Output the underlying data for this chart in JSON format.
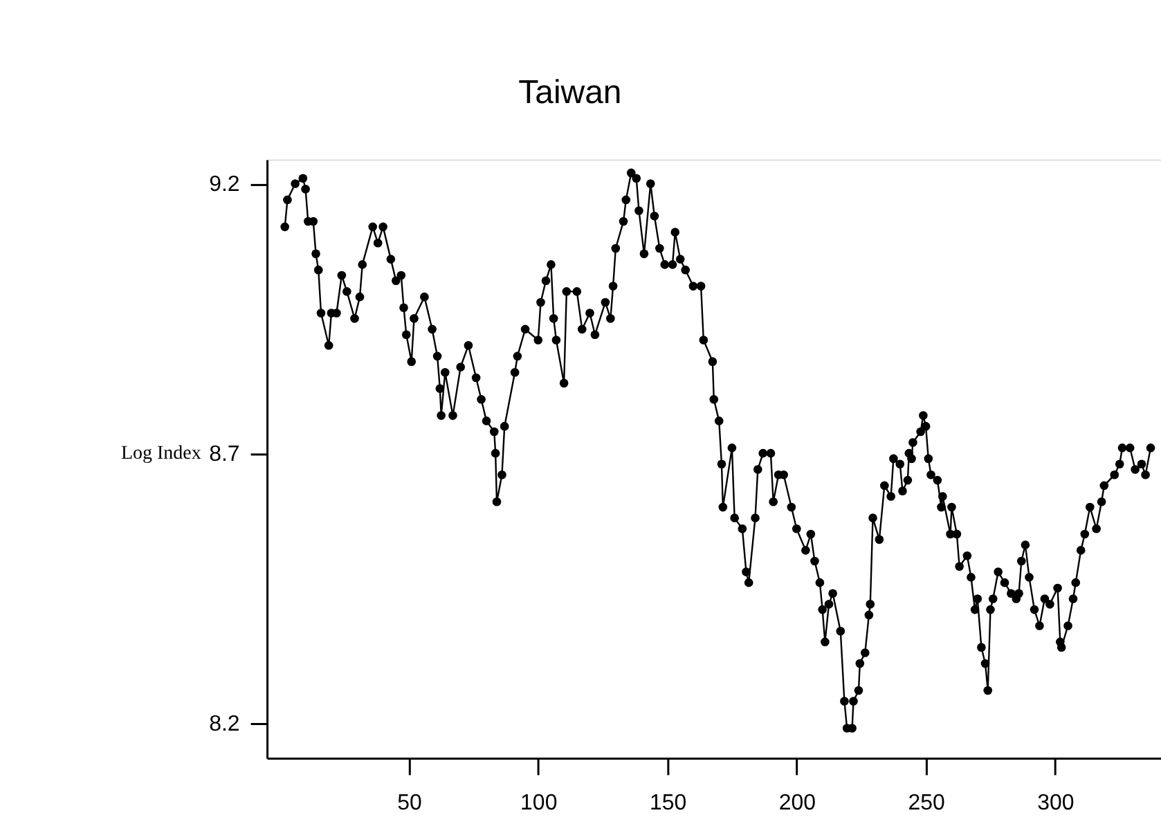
{
  "chart_data": {
    "type": "line",
    "title": "Taiwan",
    "ylabel": "Log Index",
    "x": [
      2,
      3,
      6,
      9,
      10,
      11,
      13,
      14,
      15,
      16,
      19,
      20,
      22,
      24,
      26,
      29,
      31,
      32,
      36,
      38,
      40,
      43,
      45,
      47,
      48,
      49,
      51,
      52,
      56,
      59,
      61,
      62,
      62.5,
      64,
      67,
      70,
      73,
      76,
      78,
      80,
      83,
      83.5,
      84,
      86,
      87,
      91,
      92,
      95,
      100,
      101,
      103,
      105,
      106,
      107,
      110,
      111,
      115,
      117,
      120,
      122,
      126,
      128,
      129,
      130,
      133,
      134,
      136,
      138,
      139,
      141,
      143.5,
      145,
      147,
      149,
      152,
      153,
      155,
      157,
      160,
      163,
      164,
      167.5,
      168,
      170,
      171,
      171.5,
      175,
      176,
      179,
      180.5,
      181.5,
      184,
      185,
      187,
      190,
      191,
      193,
      195,
      198,
      200,
      203.5,
      205.5,
      207,
      209,
      210,
      211,
      212.5,
      214,
      217,
      218.5,
      219.5,
      221.5,
      222,
      224,
      224.5,
      226.5,
      228,
      228.5,
      229.5,
      232,
      234,
      236.5,
      237.5,
      240,
      241,
      243,
      243.5,
      244.5,
      245,
      248,
      249,
      250,
      251,
      252,
      254.5,
      256,
      256.5,
      259.5,
      260,
      262,
      263,
      266,
      267.5,
      269,
      270,
      271.5,
      273,
      274,
      275,
      276,
      278,
      280.5,
      283,
      285,
      286,
      287,
      288.5,
      290,
      292,
      294,
      296,
      298,
      301,
      302,
      302.5,
      305,
      307,
      308,
      310,
      311.5,
      313.5,
      316,
      318,
      319,
      323,
      325,
      326,
      329,
      331,
      333.5,
      335,
      337
    ],
    "series": [
      {
        "color": "#000000",
        "values": [
          9.12,
          9.17,
          9.2,
          9.21,
          9.19,
          9.13,
          9.13,
          9.07,
          9.04,
          8.96,
          8.9,
          8.96,
          8.96,
          9.03,
          9.0,
          8.95,
          8.99,
          9.05,
          9.12,
          9.09,
          9.12,
          9.06,
          9.02,
          9.03,
          8.97,
          8.92,
          8.87,
          8.95,
          8.99,
          8.93,
          8.88,
          8.82,
          8.77,
          8.85,
          8.77,
          8.86,
          8.9,
          8.84,
          8.8,
          8.76,
          8.74,
          8.7,
          8.61,
          8.66,
          8.75,
          8.85,
          8.88,
          8.93,
          8.91,
          8.98,
          9.02,
          9.05,
          8.95,
          8.91,
          8.83,
          9.0,
          9.0,
          8.93,
          8.96,
          8.92,
          8.98,
          8.95,
          9.01,
          9.08,
          9.13,
          9.17,
          9.22,
          9.21,
          9.15,
          9.07,
          9.2,
          9.14,
          9.08,
          9.05,
          9.05,
          9.11,
          9.06,
          9.04,
          9.01,
          9.01,
          8.91,
          8.87,
          8.8,
          8.76,
          8.68,
          8.6,
          8.71,
          8.58,
          8.56,
          8.48,
          8.46,
          8.58,
          8.67,
          8.7,
          8.7,
          8.61,
          8.66,
          8.66,
          8.6,
          8.56,
          8.52,
          8.55,
          8.5,
          8.46,
          8.41,
          8.35,
          8.42,
          8.44,
          8.37,
          8.24,
          8.19,
          8.19,
          8.24,
          8.26,
          8.31,
          8.33,
          8.4,
          8.42,
          8.58,
          8.54,
          8.64,
          8.62,
          8.69,
          8.68,
          8.63,
          8.65,
          8.7,
          8.69,
          8.72,
          8.74,
          8.77,
          8.75,
          8.69,
          8.66,
          8.65,
          8.6,
          8.62,
          8.55,
          8.6,
          8.55,
          8.49,
          8.51,
          8.47,
          8.41,
          8.43,
          8.34,
          8.31,
          8.26,
          8.41,
          8.43,
          8.48,
          8.46,
          8.44,
          8.43,
          8.44,
          8.5,
          8.53,
          8.47,
          8.41,
          8.38,
          8.43,
          8.42,
          8.45,
          8.35,
          8.34,
          8.38,
          8.43,
          8.46,
          8.52,
          8.55,
          8.6,
          8.56,
          8.61,
          8.64,
          8.66,
          8.68,
          8.71,
          8.71,
          8.67,
          8.68,
          8.66,
          8.71
        ]
      }
    ],
    "xlim": [
      -5,
      341
    ],
    "ylim": [
      8.135,
      9.245
    ],
    "xticks": [
      50,
      100,
      150,
      200,
      250,
      300
    ],
    "yticks": [
      8.2,
      8.7,
      9.2
    ],
    "grid": false,
    "legend": false,
    "marker": "circle",
    "line_style": "solid"
  }
}
